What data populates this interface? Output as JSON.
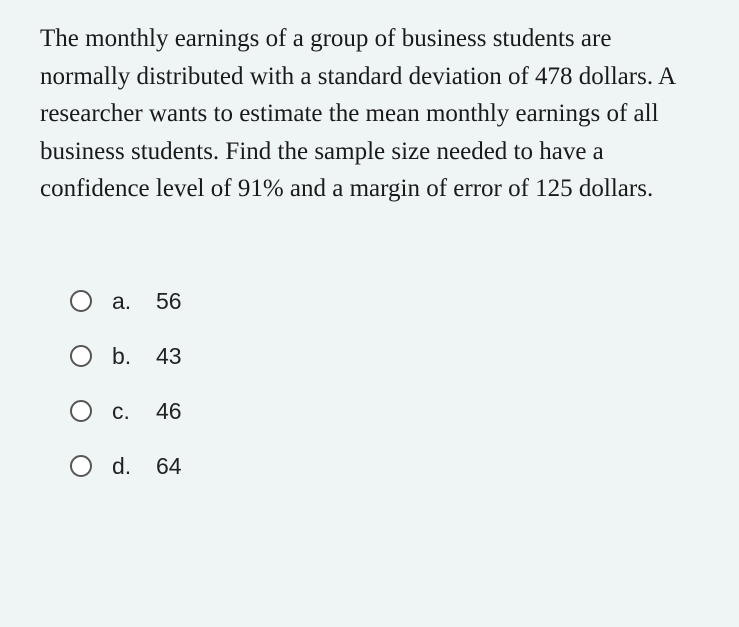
{
  "question": {
    "text": "The monthly earnings of a group of business students are normally distributed with a standard deviation of 478 dollars. A researcher wants to estimate the mean monthly earnings of all business students. Find the sample size needed to have a confidence level of 91% and a margin of error of 125 dollars.",
    "text_fontsize": 25,
    "text_color": "#1a1a1a",
    "background_color": "#eef5f4"
  },
  "options": [
    {
      "letter": "a.",
      "value": "56"
    },
    {
      "letter": "b.",
      "value": "43"
    },
    {
      "letter": "c.",
      "value": "46"
    },
    {
      "letter": "d.",
      "value": "64"
    }
  ],
  "option_style": {
    "font_family": "Arial",
    "font_size": 23,
    "text_color": "#222222",
    "radio_border_color": "#555555",
    "radio_size": 22
  }
}
